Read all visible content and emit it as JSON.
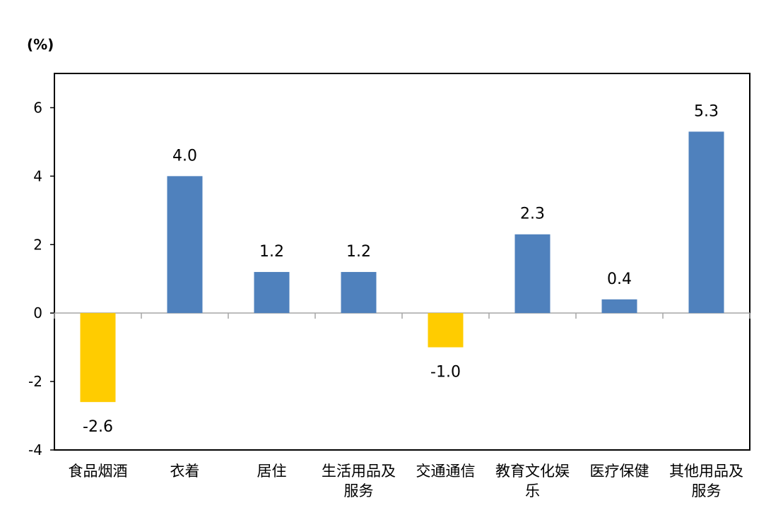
{
  "chart_data": {
    "type": "bar",
    "unit_label": "(%)",
    "categories": [
      [
        "食品烟酒"
      ],
      [
        "衣着"
      ],
      [
        "居住"
      ],
      [
        "生活用品及",
        "服务"
      ],
      [
        "交通通信"
      ],
      [
        "教育文化娱",
        "乐"
      ],
      [
        "医疗保健"
      ],
      [
        "其他用品及",
        "服务"
      ]
    ],
    "values": [
      -2.6,
      4.0,
      1.2,
      1.2,
      -1.0,
      2.3,
      0.4,
      5.3
    ],
    "value_labels": [
      "-2.6",
      "4.0",
      "1.2",
      "1.2",
      "-1.0",
      "2.3",
      "0.4",
      "5.3"
    ],
    "ylim": [
      -4,
      7
    ],
    "yticks": [
      -4,
      -2,
      0,
      2,
      4,
      6
    ],
    "ytick_labels": [
      "-4",
      "-2",
      "0",
      "2",
      "4",
      "6"
    ],
    "colors": {
      "positive": "#4F81BD",
      "negative": "#FFCC00",
      "axis": "#000000",
      "zero_line": "#A6A6A6"
    },
    "grid": false,
    "legend": "none",
    "xlabel": "",
    "ylabel": ""
  }
}
